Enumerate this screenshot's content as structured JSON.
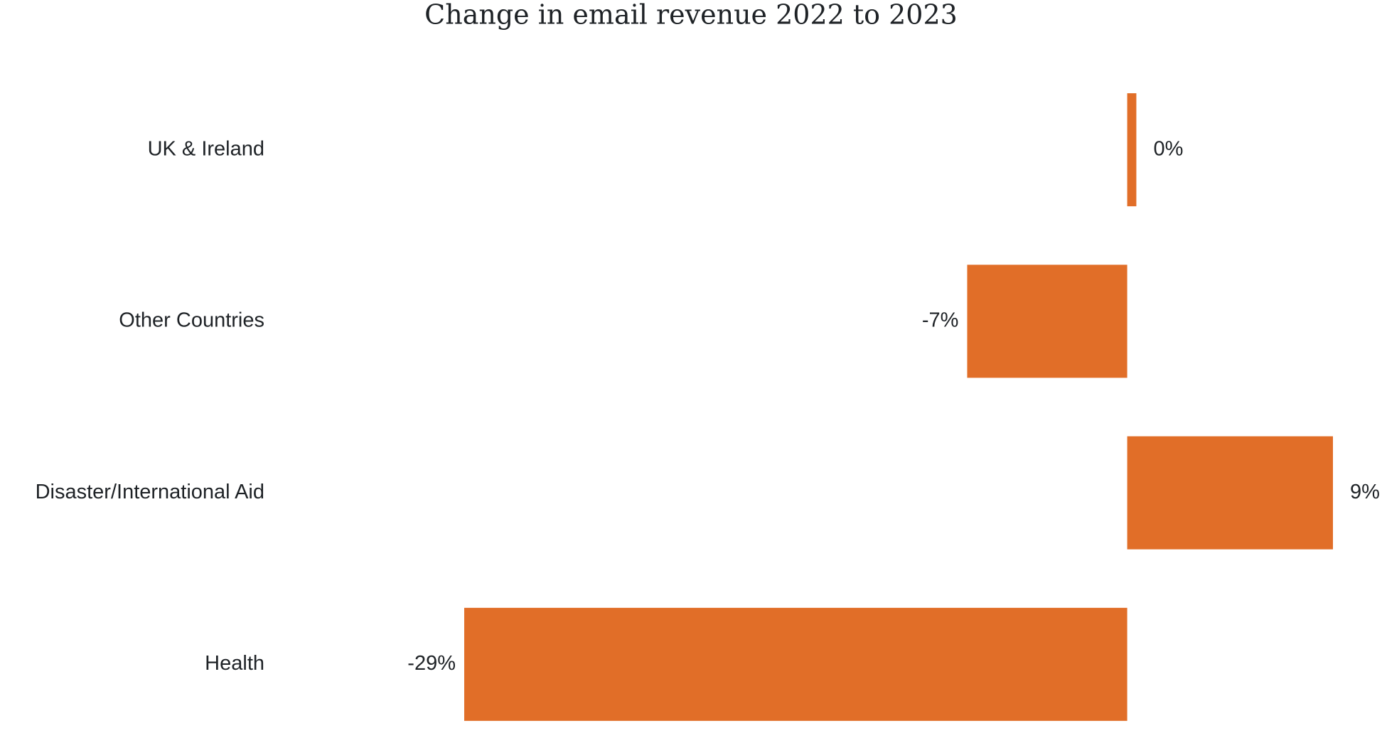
{
  "chart_data": {
    "type": "hbar",
    "title": "Change in email revenue 2022 to 2023",
    "categories": [
      "UK & Ireland",
      "Other Countries",
      "Disaster/International Aid",
      "Health"
    ],
    "values": [
      0.4,
      -7,
      9,
      -29
    ],
    "value_labels": [
      "0%",
      "-7%",
      "9%",
      "-29%"
    ],
    "color": "#e16e28"
  }
}
